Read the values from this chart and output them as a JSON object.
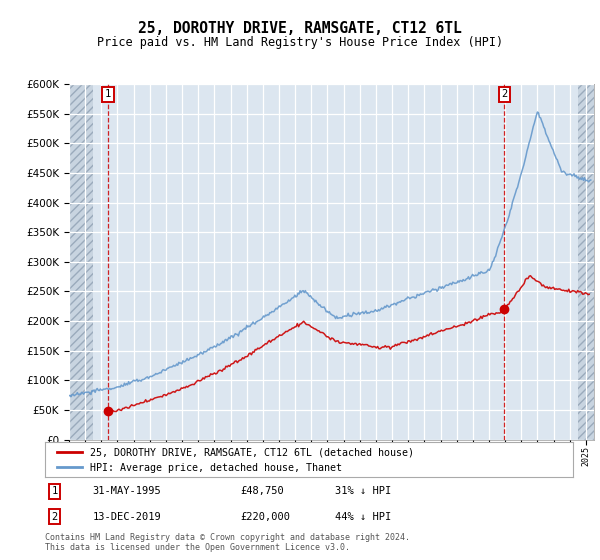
{
  "title": "25, DOROTHY DRIVE, RAMSGATE, CT12 6TL",
  "subtitle": "Price paid vs. HM Land Registry's House Price Index (HPI)",
  "legend_line1": "25, DOROTHY DRIVE, RAMSGATE, CT12 6TL (detached house)",
  "legend_line2": "HPI: Average price, detached house, Thanet",
  "point1_date": "31-MAY-1995",
  "point1_price": "£48,750",
  "point1_hpi": "31% ↓ HPI",
  "point1_year": 1995.42,
  "point1_value": 48750,
  "point2_date": "13-DEC-2019",
  "point2_price": "£220,000",
  "point2_hpi": "44% ↓ HPI",
  "point2_year": 2019.95,
  "point2_value": 220000,
  "footnote1": "Contains HM Land Registry data © Crown copyright and database right 2024.",
  "footnote2": "This data is licensed under the Open Government Licence v3.0.",
  "red_color": "#cc0000",
  "blue_color": "#6699cc",
  "bg_color": "#dce6f0",
  "ylim_min": 0,
  "ylim_max": 600000,
  "xlim_min": 1993.0,
  "xlim_max": 2025.5,
  "hatch_left_end": 1994.5,
  "hatch_right_start": 2024.5
}
